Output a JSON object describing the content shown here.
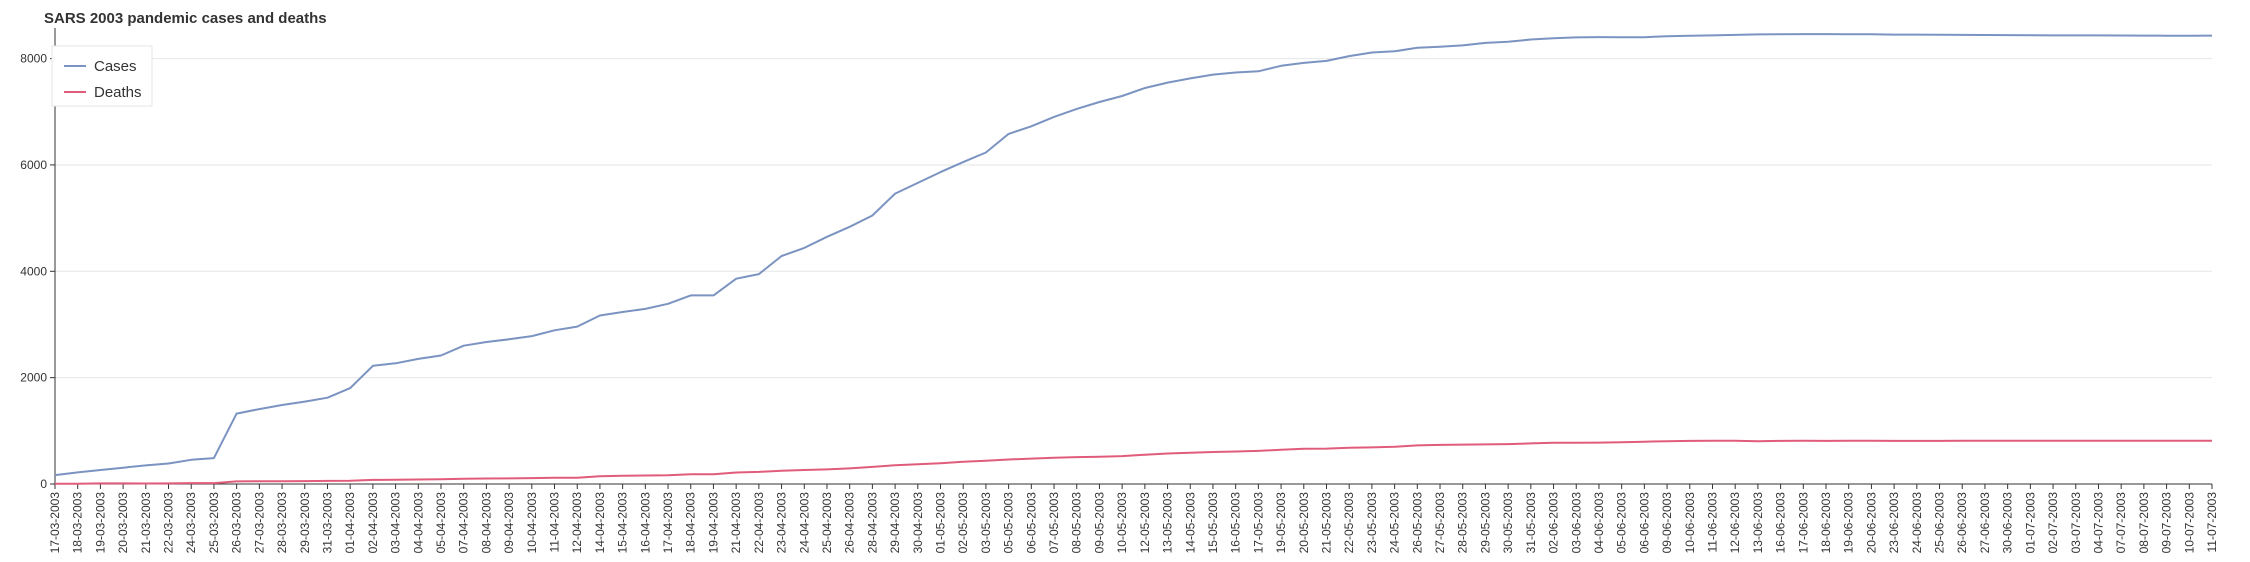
{
  "chart_data": {
    "type": "line",
    "title": "SARS 2003 pandemic cases and deaths",
    "xlabel": "",
    "ylabel": "",
    "ylim": [
      0,
      8500
    ],
    "yticks": [
      0,
      2000,
      4000,
      6000,
      8000
    ],
    "grid": "horizontal",
    "legend_position": "top-left",
    "x": [
      "17-03-2003",
      "18-03-2003",
      "19-03-2003",
      "20-03-2003",
      "21-03-2003",
      "22-03-2003",
      "24-03-2003",
      "25-03-2003",
      "26-03-2003",
      "27-03-2003",
      "28-03-2003",
      "29-03-2003",
      "31-03-2003",
      "01-04-2003",
      "02-04-2003",
      "03-04-2003",
      "04-04-2003",
      "05-04-2003",
      "07-04-2003",
      "08-04-2003",
      "09-04-2003",
      "10-04-2003",
      "11-04-2003",
      "12-04-2003",
      "14-04-2003",
      "15-04-2003",
      "16-04-2003",
      "17-04-2003",
      "18-04-2003",
      "19-04-2003",
      "21-04-2003",
      "22-04-2003",
      "23-04-2003",
      "24-04-2003",
      "25-04-2003",
      "26-04-2003",
      "28-04-2003",
      "29-04-2003",
      "30-04-2003",
      "01-05-2003",
      "02-05-2003",
      "03-05-2003",
      "05-05-2003",
      "06-05-2003",
      "07-05-2003",
      "08-05-2003",
      "09-05-2003",
      "10-05-2003",
      "12-05-2003",
      "13-05-2003",
      "14-05-2003",
      "15-05-2003",
      "16-05-2003",
      "17-05-2003",
      "19-05-2003",
      "20-05-2003",
      "21-05-2003",
      "22-05-2003",
      "23-05-2003",
      "24-05-2003",
      "26-05-2003",
      "27-05-2003",
      "28-05-2003",
      "29-05-2003",
      "30-05-2003",
      "31-05-2003",
      "02-06-2003",
      "03-06-2003",
      "04-06-2003",
      "05-06-2003",
      "06-06-2003",
      "09-06-2003",
      "10-06-2003",
      "11-06-2003",
      "12-06-2003",
      "13-06-2003",
      "16-06-2003",
      "17-06-2003",
      "18-06-2003",
      "19-06-2003",
      "20-06-2003",
      "23-06-2003",
      "24-06-2003",
      "25-06-2003",
      "26-06-2003",
      "27-06-2003",
      "30-06-2003",
      "01-07-2003",
      "02-07-2003",
      "03-07-2003",
      "04-07-2003",
      "07-07-2003",
      "08-07-2003",
      "09-07-2003",
      "10-07-2003",
      "11-07-2003"
    ],
    "series": [
      {
        "name": "Cases",
        "color": "#7b93c1",
        "values": [
          167,
          219,
          264,
          306,
          350,
          386,
          456,
          487,
          1323,
          1408,
          1485,
          1550,
          1622,
          1804,
          2223,
          2270,
          2353,
          2416,
          2601,
          2671,
          2722,
          2781,
          2890,
          2960,
          3169,
          3235,
          3293,
          3389,
          3547,
          3547,
          3861,
          3947,
          4288,
          4439,
          4649,
          4836,
          5050,
          5462,
          5663,
          5865,
          6054,
          6234,
          6583,
          6727,
          6903,
          7053,
          7183,
          7296,
          7447,
          7548,
          7628,
          7699,
          7739,
          7761,
          7864,
          7919,
          7956,
          8046,
          8114,
          8137,
          8202,
          8221,
          8248,
          8295,
          8316,
          8359,
          8384,
          8399,
          8404,
          8402,
          8403,
          8421,
          8430,
          8437,
          8445,
          8454,
          8458,
          8460,
          8461,
          8459,
          8457,
          8452,
          8451,
          8450,
          8446,
          8443,
          8441,
          8440,
          8437,
          8437,
          8437,
          8434,
          8432,
          8431,
          8431,
          8432
        ]
      },
      {
        "name": "Deaths",
        "color": "#e05c7a",
        "values": [
          4,
          4,
          11,
          11,
          10,
          11,
          17,
          17,
          49,
          53,
          53,
          54,
          58,
          62,
          78,
          79,
          84,
          89,
          98,
          103,
          106,
          111,
          116,
          119,
          144,
          154,
          159,
          165,
          182,
          182,
          217,
          228,
          251,
          263,
          274,
          293,
          321,
          353,
          372,
          391,
          417,
          437,
          461,
          478,
          493,
          506,
          513,
          525,
          551,
          573,
          586,
          602,
          611,
          622,
          643,
          662,
          666,
          682,
          689,
          700,
          725,
          735,
          741,
          745,
          751,
          764,
          775,
          775,
          779,
          784,
          795,
          804,
          810,
          812,
          813,
          804,
          810,
          812,
          811,
          813,
          813,
          811,
          811,
          811,
          812,
          812,
          812,
          812,
          812,
          812,
          812,
          813,
          813,
          813,
          813,
          813
        ]
      }
    ]
  }
}
